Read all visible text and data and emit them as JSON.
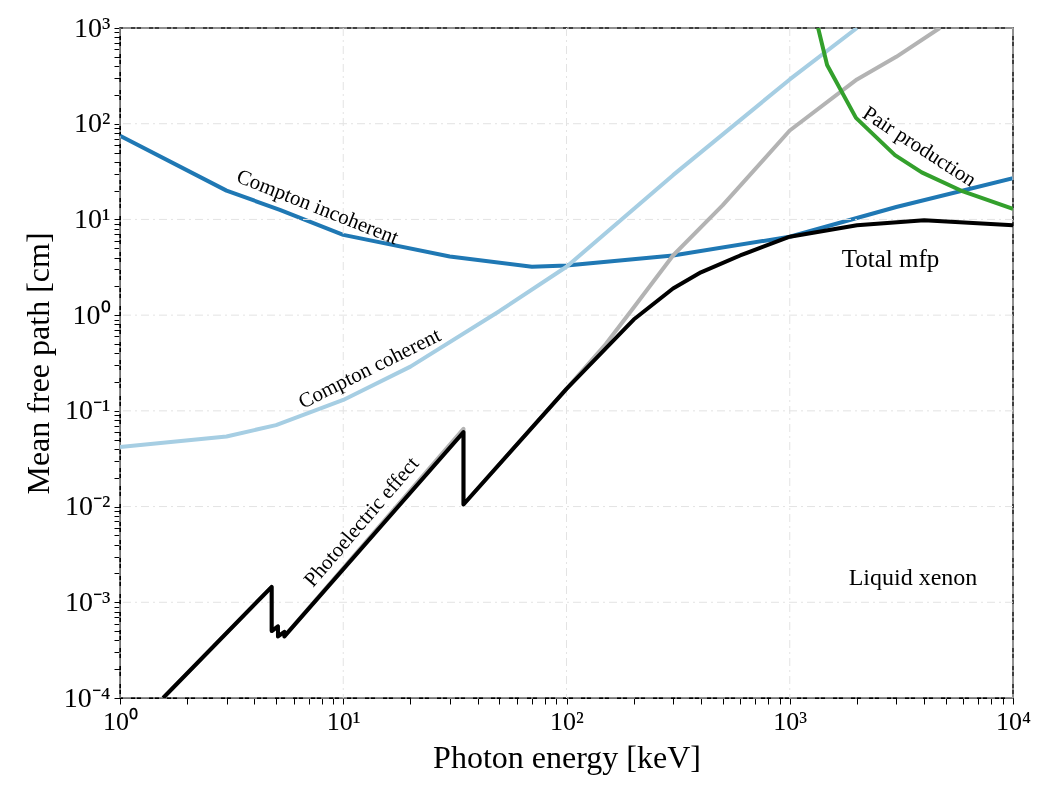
{
  "chart_data": {
    "type": "line",
    "xlabel": "Photon energy [keV]",
    "ylabel": "Mean free path [cm]",
    "log": "xy",
    "grid": true,
    "line_style": "solid",
    "marker": "none",
    "annotations": [
      "Liquid xenon"
    ],
    "xlim": [
      1,
      10000
    ],
    "ylim": [
      0.0001,
      1000
    ],
    "xticks": [
      {
        "value": 1,
        "label": "10⁰"
      },
      {
        "value": 2,
        "label": null
      },
      {
        "value": 3,
        "label": null
      },
      {
        "value": 4,
        "label": null
      },
      {
        "value": 5,
        "label": null
      },
      {
        "value": 6,
        "label": null
      },
      {
        "value": 7,
        "label": null
      },
      {
        "value": 8,
        "label": null
      },
      {
        "value": 9,
        "label": null
      },
      {
        "value": 10,
        "label": "10¹"
      },
      {
        "value": 20,
        "label": null
      },
      {
        "value": 30,
        "label": null
      },
      {
        "value": 40,
        "label": null
      },
      {
        "value": 50,
        "label": null
      },
      {
        "value": 60,
        "label": null
      },
      {
        "value": 70,
        "label": null
      },
      {
        "value": 80,
        "label": null
      },
      {
        "value": 90,
        "label": null
      },
      {
        "value": 100,
        "label": "10²"
      },
      {
        "value": 200,
        "label": null
      },
      {
        "value": 300,
        "label": null
      },
      {
        "value": 400,
        "label": null
      },
      {
        "value": 500,
        "label": null
      },
      {
        "value": 600,
        "label": null
      },
      {
        "value": 700,
        "label": null
      },
      {
        "value": 800,
        "label": null
      },
      {
        "value": 900,
        "label": null
      },
      {
        "value": 1000,
        "label": "10³"
      },
      {
        "value": 2000,
        "label": null
      },
      {
        "value": 3000,
        "label": null
      },
      {
        "value": 4000,
        "label": null
      },
      {
        "value": 5000,
        "label": null
      },
      {
        "value": 6000,
        "label": null
      },
      {
        "value": 7000,
        "label": null
      },
      {
        "value": 8000,
        "label": null
      },
      {
        "value": 9000,
        "label": null
      },
      {
        "value": 10000,
        "label": "10⁴"
      }
    ],
    "yticks": [
      {
        "value": 0.0001,
        "label": "10⁻⁴"
      },
      {
        "value": 0.0002,
        "label": null
      },
      {
        "value": 0.0003,
        "label": null
      },
      {
        "value": 0.0004,
        "label": null
      },
      {
        "value": 0.0005,
        "label": null
      },
      {
        "value": 0.0006,
        "label": null
      },
      {
        "value": 0.0007,
        "label": null
      },
      {
        "value": 0.0008,
        "label": null
      },
      {
        "value": 0.0009,
        "label": null
      },
      {
        "value": 0.001,
        "label": "10⁻³"
      },
      {
        "value": 0.002,
        "label": null
      },
      {
        "value": 0.003,
        "label": null
      },
      {
        "value": 0.004,
        "label": null
      },
      {
        "value": 0.005,
        "label": null
      },
      {
        "value": 0.006,
        "label": null
      },
      {
        "value": 0.007,
        "label": null
      },
      {
        "value": 0.008,
        "label": null
      },
      {
        "value": 0.009,
        "label": null
      },
      {
        "value": 0.01,
        "label": "10⁻²"
      },
      {
        "value": 0.02,
        "label": null
      },
      {
        "value": 0.03,
        "label": null
      },
      {
        "value": 0.04,
        "label": null
      },
      {
        "value": 0.05,
        "label": null
      },
      {
        "value": 0.06,
        "label": null
      },
      {
        "value": 0.07,
        "label": null
      },
      {
        "value": 0.08,
        "label": null
      },
      {
        "value": 0.09,
        "label": null
      },
      {
        "value": 0.1,
        "label": "10⁻¹"
      },
      {
        "value": 0.2,
        "label": null
      },
      {
        "value": 0.3,
        "label": null
      },
      {
        "value": 0.4,
        "label": null
      },
      {
        "value": 0.5,
        "label": null
      },
      {
        "value": 0.6,
        "label": null
      },
      {
        "value": 0.7,
        "label": null
      },
      {
        "value": 0.8,
        "label": null
      },
      {
        "value": 0.9,
        "label": null
      },
      {
        "value": 1,
        "label": "10⁰"
      },
      {
        "value": 2,
        "label": null
      },
      {
        "value": 3,
        "label": null
      },
      {
        "value": 4,
        "label": null
      },
      {
        "value": 5,
        "label": null
      },
      {
        "value": 6,
        "label": null
      },
      {
        "value": 7,
        "label": null
      },
      {
        "value": 8,
        "label": null
      },
      {
        "value": 9,
        "label": null
      },
      {
        "value": 10,
        "label": "10¹"
      },
      {
        "value": 20,
        "label": null
      },
      {
        "value": 30,
        "label": null
      },
      {
        "value": 40,
        "label": null
      },
      {
        "value": 50,
        "label": null
      },
      {
        "value": 60,
        "label": null
      },
      {
        "value": 70,
        "label": null
      },
      {
        "value": 80,
        "label": null
      },
      {
        "value": 90,
        "label": null
      },
      {
        "value": 100,
        "label": "10²"
      },
      {
        "value": 200,
        "label": null
      },
      {
        "value": 300,
        "label": null
      },
      {
        "value": 400,
        "label": null
      },
      {
        "value": 500,
        "label": null
      },
      {
        "value": 600,
        "label": null
      },
      {
        "value": 700,
        "label": null
      },
      {
        "value": 800,
        "label": null
      },
      {
        "value": 900,
        "label": null
      },
      {
        "value": 1000,
        "label": "10³"
      }
    ],
    "series": [
      {
        "name": "Compton incoherent",
        "color": "#1f78b4",
        "x": [
          1,
          3,
          5.2,
          10,
          30,
          70,
          100,
          300,
          1000,
          3000,
          10000
        ],
        "values": [
          75,
          20,
          12.6,
          6.9,
          4.1,
          3.2,
          3.3,
          4.2,
          6.6,
          13.5,
          27
        ]
      },
      {
        "name": "Compton coherent",
        "color": "#a6cee3",
        "x": [
          1,
          3,
          5,
          10,
          20,
          50,
          100,
          300,
          1000,
          2000
        ],
        "values": [
          0.042,
          0.054,
          0.071,
          0.13,
          0.29,
          1.1,
          3.2,
          29,
          290,
          1000
        ]
      },
      {
        "name": "Photoelectric effect",
        "color": "#b3b3b3",
        "x": [
          1.56,
          4.78,
          4.78,
          5.1,
          5.1,
          5.45,
          5.45,
          34.56,
          34.56,
          100,
          150,
          200,
          300,
          500,
          1000,
          2000,
          3000,
          4700
        ],
        "values": [
          0.0001,
          0.00145,
          0.0005,
          0.00056,
          0.00044,
          0.00049,
          0.00044,
          0.065,
          0.0105,
          0.17,
          0.5,
          1.2,
          4.2,
          14,
          85,
          290,
          500,
          1000
        ]
      },
      {
        "name": "Pair production",
        "color": "#33a02c",
        "x": [
          1340,
          1470,
          1980,
          2960,
          3900,
          5970,
          10000
        ],
        "values": [
          1000,
          410,
          115,
          47,
          31,
          19.6,
          12.9
        ]
      },
      {
        "name": "Total mfp",
        "color": "#000000",
        "x": [
          1.56,
          4.78,
          4.78,
          5.1,
          5.1,
          5.45,
          5.45,
          34.56,
          34.56,
          100,
          200,
          300,
          400,
          600,
          1000,
          2000,
          4000,
          10000
        ],
        "values": [
          0.0001,
          0.00145,
          0.0005,
          0.00056,
          0.00044,
          0.00049,
          0.00044,
          0.06,
          0.0105,
          0.17,
          0.9,
          1.9,
          2.8,
          4.2,
          6.6,
          8.7,
          9.8,
          8.7
        ]
      }
    ]
  }
}
